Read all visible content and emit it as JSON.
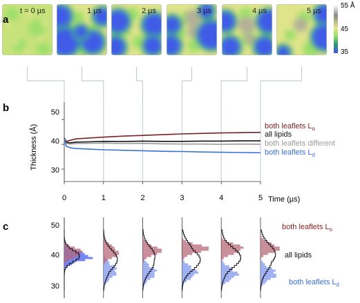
{
  "panels": {
    "a": {
      "label": "a",
      "snapshots": [
        "t = 0 µs",
        "1 µs",
        "2 µs",
        "3 µs",
        "4 µs",
        "5 µs"
      ],
      "colorbar": {
        "ticks": [
          "55 Å",
          "45",
          "35"
        ],
        "colors": [
          "#ffffff",
          "#8c8c8c",
          "#e8e68a",
          "#8ee06a",
          "#2f9f6a",
          "#3b54e8"
        ]
      }
    },
    "b": {
      "label": "b",
      "ylabel": "Thickness (Å)",
      "xlabel": "Time (µs)",
      "yticks": [
        "50",
        "40",
        "30"
      ],
      "xticks": [
        "0",
        "1",
        "2",
        "3",
        "4",
        "5"
      ]
    },
    "c": {
      "label": "c",
      "yticks": [
        "50",
        "40",
        "30"
      ],
      "legend": [
        {
          "name": "both leaflets L",
          "sub": "o",
          "color": "#8a1c1c"
        },
        {
          "name": "all lipids",
          "sub": "",
          "color": "#111111"
        },
        {
          "name": "both leaflets L",
          "sub": "d",
          "color": "#3b6fd6"
        }
      ]
    }
  },
  "chart_data": {
    "type": "line",
    "title": "",
    "xlabel": "Time (µs)",
    "ylabel": "Thickness (Å)",
    "xlim": [
      0,
      5
    ],
    "ylim": [
      25,
      57
    ],
    "grid": false,
    "series": [
      {
        "name": "both leaflets L",
        "sub": "o",
        "color": "#7a1f22",
        "x": [
          0,
          0.05,
          0.15,
          0.3,
          0.6,
          1.0,
          1.5,
          2.0,
          2.5,
          3.0,
          3.5,
          4.0,
          4.5,
          5.0
        ],
        "y": [
          42.6,
          41.2,
          41.6,
          42.2,
          42.5,
          42.9,
          43.3,
          43.6,
          43.9,
          44.2,
          44.4,
          44.6,
          44.7,
          44.8
        ]
      },
      {
        "name": "all lipids",
        "sub": "",
        "color": "#111111",
        "x": [
          0,
          0.05,
          0.15,
          0.3,
          0.6,
          1.0,
          1.5,
          2.0,
          2.5,
          3.0,
          3.5,
          4.0,
          4.5,
          5.0
        ],
        "y": [
          42.5,
          40.8,
          40.6,
          40.9,
          41.0,
          41.2,
          41.1,
          41.3,
          41.2,
          41.2,
          41.3,
          41.3,
          41.4,
          41.4
        ]
      },
      {
        "name": "both leaflets different",
        "sub": "",
        "color": "#9a9a9a",
        "x": [
          0,
          0.05,
          0.15,
          0.3,
          0.6,
          1.0,
          1.5,
          2.0,
          2.5,
          3.0,
          3.5,
          4.0,
          4.5,
          5.0
        ],
        "y": [
          42.4,
          40.4,
          40.1,
          40.3,
          40.4,
          40.5,
          40.3,
          40.4,
          40.2,
          40.1,
          40.1,
          40.0,
          40.1,
          40.0
        ]
      },
      {
        "name": "both leaflets L",
        "sub": "d",
        "color": "#3b6fd6",
        "x": [
          0,
          0.05,
          0.15,
          0.3,
          0.6,
          1.0,
          1.5,
          2.0,
          2.5,
          3.0,
          3.5,
          4.0,
          4.5,
          5.0
        ],
        "y": [
          42.3,
          39.3,
          38.6,
          38.3,
          38.1,
          37.8,
          37.6,
          37.4,
          37.2,
          37.1,
          36.9,
          36.8,
          36.7,
          36.6
        ]
      }
    ]
  }
}
